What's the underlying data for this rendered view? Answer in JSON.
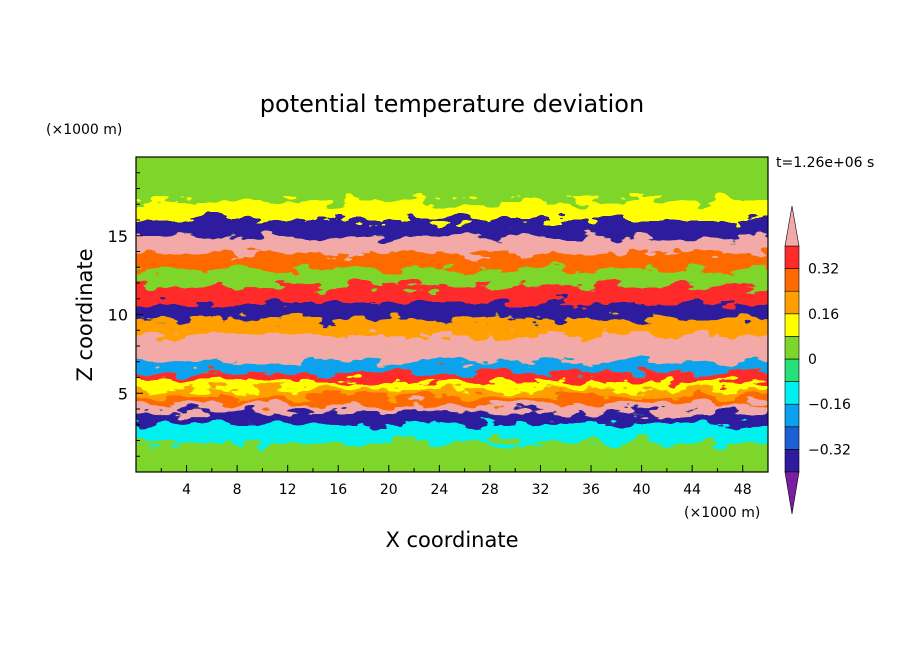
{
  "chart_data": {
    "type": "heatmap",
    "title": "potential temperature deviation",
    "xlabel": "X coordinate",
    "ylabel": "Z coordinate",
    "x_unit": "(×1000 m)",
    "y_unit": "(×1000 m)",
    "time_label": "t=1.26e+06 s",
    "x_ticks": [
      "4",
      "8",
      "12",
      "16",
      "20",
      "24",
      "28",
      "32",
      "36",
      "40",
      "44",
      "48"
    ],
    "y_ticks": [
      "5",
      "10",
      "15"
    ],
    "xlim": [
      0,
      50
    ],
    "ylim": [
      0,
      20
    ],
    "colorbar": {
      "labels": [
        "0.32",
        "0.16",
        "0",
        "-0.16",
        "-0.32"
      ],
      "label_texts": [
        "0.32",
        "0.16",
        "0",
        "−0.16",
        "−0.32"
      ],
      "level_step": 0.08,
      "colors": [
        "#7b1fa2",
        "#2e1b9e",
        "#1f5fd6",
        "#0aa2ee",
        "#00f0f0",
        "#26e07a",
        "#7ed62a",
        "#ffff00",
        "#ffa000",
        "#ff6a00",
        "#ff2a2a",
        "#f4a9a9"
      ],
      "min_cap_color": "#7b1fa2",
      "max_cap_color": "#f4a9a9"
    },
    "field_description": "banded wave structure: strong positive/negative layers between z=5 and z=17, near-neutral aloft, convective plumes below z=4",
    "bands": [
      {
        "z": 19.0,
        "value": 0.02
      },
      {
        "z": 17.8,
        "value": 0.05
      },
      {
        "z": 16.6,
        "value": 0.1
      },
      {
        "z": 15.4,
        "value": -0.38
      },
      {
        "z": 14.4,
        "value": 0.42
      },
      {
        "z": 13.4,
        "value": 0.3
      },
      {
        "z": 12.4,
        "value": 0.0
      },
      {
        "z": 11.2,
        "value": 0.38
      },
      {
        "z": 10.2,
        "value": -0.38
      },
      {
        "z": 9.2,
        "value": 0.2
      },
      {
        "z": 8.2,
        "value": 0.42
      },
      {
        "z": 7.4,
        "value": 0.4
      },
      {
        "z": 6.6,
        "value": -0.2
      },
      {
        "z": 6.0,
        "value": 0.32
      },
      {
        "z": 5.5,
        "value": 0.1
      },
      {
        "z": 5.0,
        "value": 0.16
      },
      {
        "z": 4.6,
        "value": 0.28
      },
      {
        "z": 4.0,
        "value": 0.42
      },
      {
        "z": 3.6,
        "value": -0.38
      },
      {
        "z": 2.5,
        "value": -0.1
      },
      {
        "z": 1.2,
        "value": 0.04
      }
    ]
  }
}
